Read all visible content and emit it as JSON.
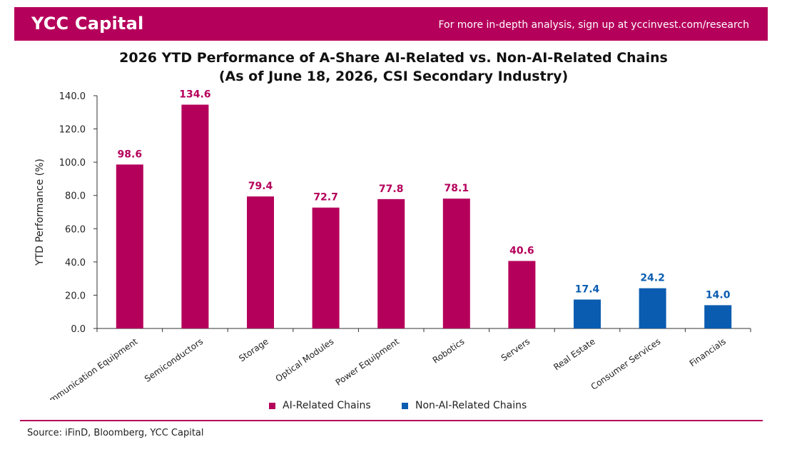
{
  "header": {
    "brand": "YCC Capital",
    "promo": "For more in-depth analysis, sign up at yccinvest.com/research"
  },
  "colors": {
    "ai": "#b5005b",
    "non_ai": "#0a5cb0",
    "band": "#b5005b"
  },
  "chart_data": {
    "type": "bar",
    "title": "2026 YTD Performance of A-Share AI-Related vs. Non-AI-Related Chains",
    "subtitle": "(As of June 18, 2026, CSI Secondary Industry)",
    "ylabel": "YTD Performance (%)",
    "ylim": [
      0,
      140
    ],
    "yticks": [
      "0.0",
      "20.0",
      "40.0",
      "60.0",
      "80.0",
      "100.0",
      "120.0",
      "140.0"
    ],
    "categories": [
      "Communication Equipment",
      "Semiconductors",
      "Storage",
      "Optical Modules",
      "Power Equipment",
      "Robotics",
      "Servers",
      "Real Estate",
      "Consumer Services",
      "Financials"
    ],
    "values": [
      98.6,
      134.6,
      79.4,
      72.7,
      77.8,
      78.1,
      40.6,
      17.4,
      24.2,
      14.0
    ],
    "value_labels": [
      "98.6",
      "134.6",
      "79.4",
      "72.7",
      "77.8",
      "78.1",
      "40.6",
      "17.4",
      "24.2",
      "14.0"
    ],
    "groups": [
      "ai",
      "ai",
      "ai",
      "ai",
      "ai",
      "ai",
      "ai",
      "non_ai",
      "non_ai",
      "non_ai"
    ],
    "grid": false,
    "legend": {
      "placement": "bottom",
      "items": [
        {
          "key": "ai",
          "label": "AI-Related Chains"
        },
        {
          "key": "non_ai",
          "label": "Non-AI-Related Chains"
        }
      ]
    }
  },
  "source": "Source: iFinD, Bloomberg, YCC Capital"
}
